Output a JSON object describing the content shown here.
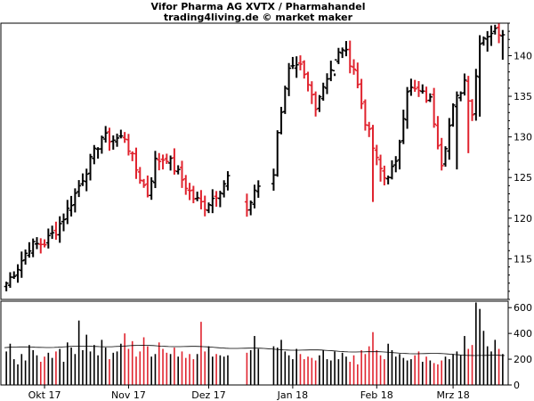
{
  "header": {
    "title": "Vifor Pharma AG XVTX / Pharmahandel",
    "subtitle": "trading4living.de © market maker"
  },
  "colors": {
    "up": "#000000",
    "down": "#e0232e",
    "avg": "#000000",
    "frame": "#000000"
  },
  "chart_data": [
    {
      "type": "ohlc",
      "title": "Vifor Pharma AG XVTX / Pharmahandel",
      "ylim": [
        110,
        144
      ],
      "y_ticks": [
        115,
        120,
        125,
        130,
        135,
        140
      ],
      "x_labels": [
        "Okt 17",
        "Nov 17",
        "Dez 17",
        "Jan 18",
        "Feb 18",
        "Mrz 18"
      ],
      "x_label_positions": [
        10,
        32,
        53,
        75,
        97,
        117
      ],
      "n_bars": 131,
      "gaps": [
        59,
        60,
        61,
        62,
        67,
        68,
        69
      ],
      "segments": [
        [
          0,
          112
        ],
        [
          3,
          114
        ],
        [
          6,
          116.5
        ],
        [
          10,
          117
        ],
        [
          13,
          118.5
        ],
        [
          16,
          121
        ],
        [
          19,
          124
        ],
        [
          22,
          127
        ],
        [
          25,
          130
        ],
        [
          28,
          129.7
        ],
        [
          31,
          130
        ],
        [
          34,
          126
        ],
        [
          37,
          123
        ],
        [
          39,
          127
        ],
        [
          42,
          127.5
        ],
        [
          45,
          125.5
        ],
        [
          49,
          122.5
        ],
        [
          52,
          121.5
        ],
        [
          55,
          123
        ],
        [
          58,
          125
        ],
        [
          63,
          121
        ],
        [
          66,
          124
        ],
        [
          70,
          125
        ],
        [
          71,
          131
        ],
        [
          74,
          138
        ],
        [
          77,
          138.5
        ],
        [
          81,
          134
        ],
        [
          84,
          137.5
        ],
        [
          88,
          141
        ],
        [
          91,
          138.5
        ],
        [
          94,
          132
        ],
        [
          97,
          127
        ],
        [
          99,
          125
        ],
        [
          102,
          126.5
        ],
        [
          105,
          136
        ],
        [
          108,
          135.5
        ],
        [
          111,
          134.5
        ],
        [
          114,
          127
        ],
        [
          117,
          133.5
        ],
        [
          120,
          137
        ],
        [
          122,
          133
        ],
        [
          124,
          142
        ],
        [
          127,
          143
        ],
        [
          130,
          143
        ]
      ],
      "spikes": [
        {
          "i": 0,
          "low": 111
        },
        {
          "i": 96,
          "low": 122
        },
        {
          "i": 98,
          "low": 124.5
        },
        {
          "i": 118,
          "low": 126
        },
        {
          "i": 121,
          "low": 128
        },
        {
          "i": 123,
          "low": 132
        },
        {
          "i": 124,
          "low": 132.5
        },
        {
          "i": 126,
          "low": 140.5
        },
        {
          "i": 130,
          "low": 139.5
        },
        {
          "i": 89,
          "high": 141.8
        },
        {
          "i": 86,
          "high": 137.5
        }
      ],
      "volatility": 0.8,
      "seed": 7
    },
    {
      "type": "bar",
      "title": "",
      "series_name": "",
      "ylim": [
        0,
        650
      ],
      "y_ticks": [
        0,
        200,
        400,
        600
      ],
      "average": {
        "start": 290,
        "peak": 305,
        "end": 225
      },
      "volume_profile": [
        260,
        320,
        200,
        160,
        240,
        190,
        310,
        270,
        230,
        180,
        220,
        250,
        210,
        260,
        280,
        180,
        330,
        290,
        240,
        500,
        270,
        390,
        260,
        310,
        230,
        350,
        290,
        200,
        250,
        260,
        320,
        400,
        280,
        340,
        220,
        260,
        370,
        300,
        220,
        240,
        330,
        280,
        250,
        240,
        290,
        220,
        260,
        210,
        240,
        200,
        240,
        490,
        260,
        300,
        220,
        240,
        230,
        220,
        230,
        0,
        0,
        0,
        0,
        250,
        270,
        380,
        280,
        0,
        0,
        0,
        300,
        290,
        350,
        260,
        230,
        200,
        280,
        240,
        200,
        220,
        210,
        190,
        230,
        270,
        200,
        190,
        260,
        200,
        250,
        220,
        180,
        230,
        160,
        270,
        240,
        300,
        410,
        270,
        230,
        200,
        320,
        270,
        220,
        240,
        210,
        190,
        200,
        230,
        260,
        180,
        220,
        190,
        170,
        160,
        190,
        220,
        200,
        240,
        260,
        230,
        380,
        280,
        310,
        640,
        590,
        420,
        300,
        260,
        350,
        280,
        240
      ]
    }
  ]
}
